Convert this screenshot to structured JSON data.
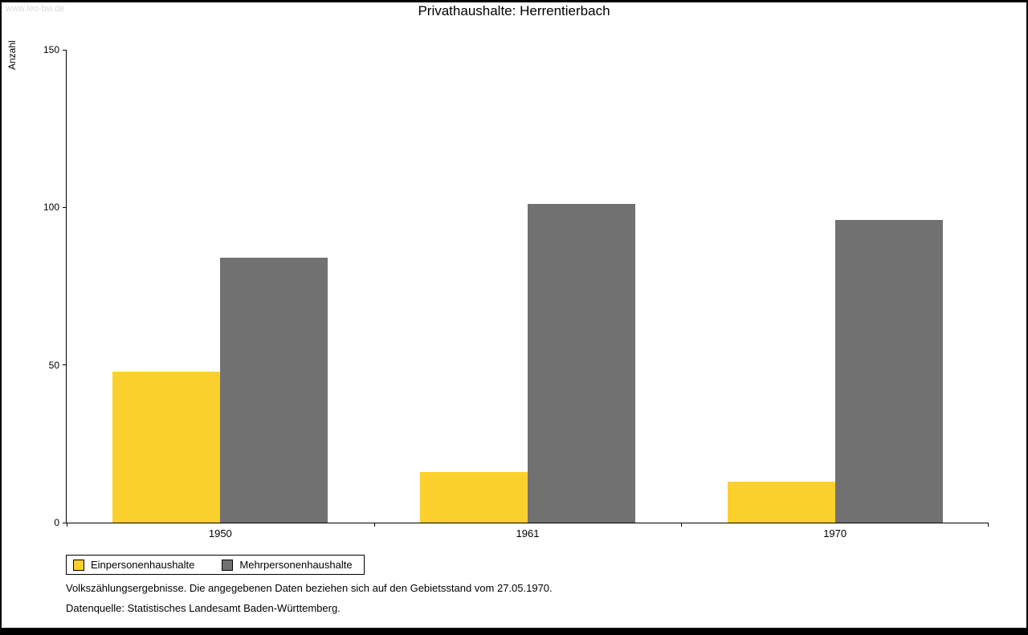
{
  "watermark": "www.leo-bw.de",
  "title": "Privathaushalte: Herrentierbach",
  "chart_data": {
    "type": "bar",
    "title": "Privathaushalte: Herrentierbach",
    "xlabel": "",
    "ylabel": "Anzahl",
    "ylim": [
      0,
      150
    ],
    "yticks": [
      0,
      50,
      100,
      150
    ],
    "grid": false,
    "legend_position": "bottom-left",
    "categories": [
      "1950",
      "1961",
      "1970"
    ],
    "series": [
      {
        "name": "Einpersonenhaushalte",
        "color": "#FCD02C",
        "values": [
          48,
          16,
          13
        ]
      },
      {
        "name": "Mehrpersonenhaushalte",
        "color": "#717171",
        "values": [
          84,
          101,
          96
        ]
      }
    ]
  },
  "footnotes": [
    "Volkszählungsergebnisse. Die angegebenen Daten beziehen sich auf den Gebietsstand vom 27.05.1970.",
    "Datenquelle: Statistisches Landesamt Baden-Württemberg."
  ]
}
